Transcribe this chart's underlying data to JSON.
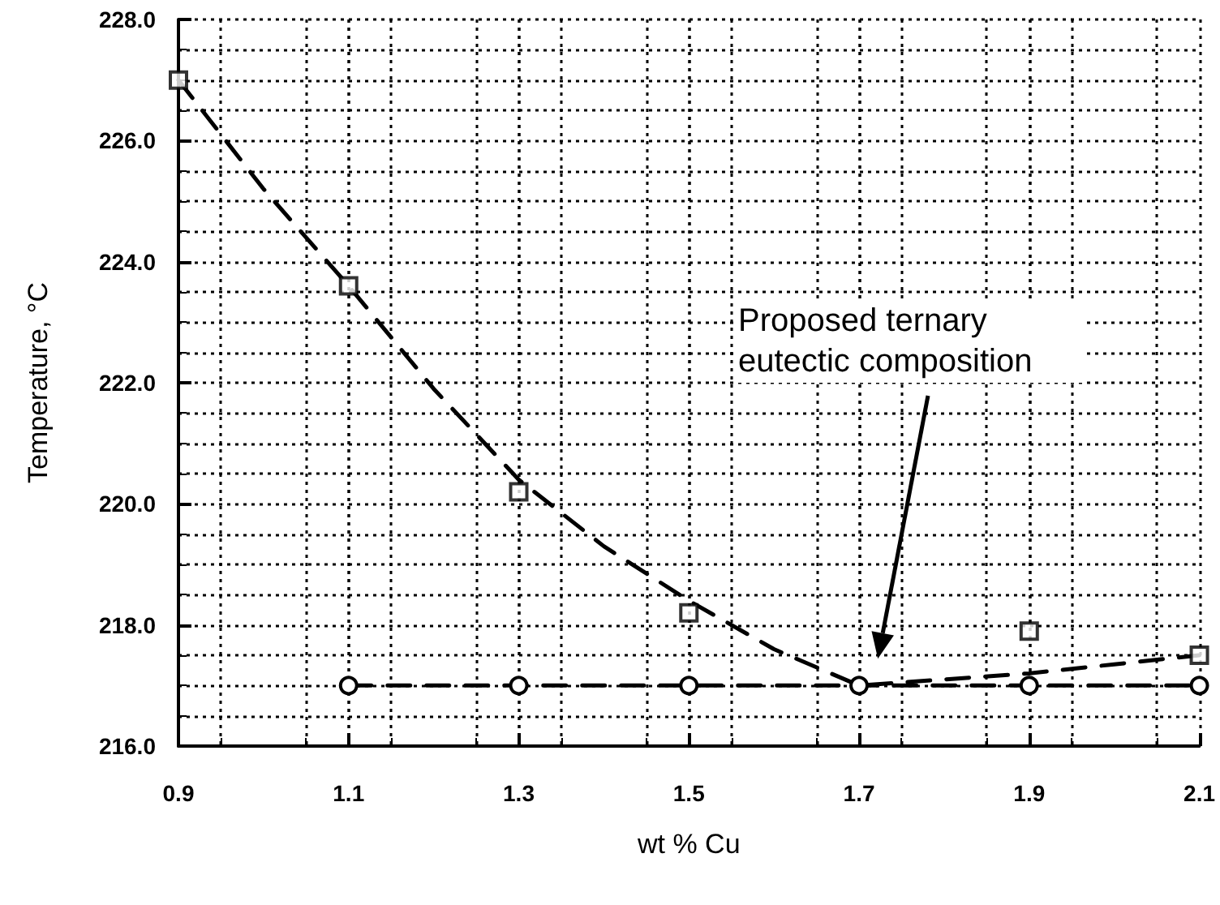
{
  "chart_data": {
    "type": "scatter",
    "xlabel": "wt % Cu",
    "ylabel": "Temperature, °C",
    "xlim": [
      0.9,
      2.1
    ],
    "ylim": [
      216,
      228
    ],
    "xticks": [
      0.9,
      1.1,
      1.3,
      1.5,
      1.7,
      1.9,
      2.1
    ],
    "yticks": [
      {
        "value": 216,
        "label": "216.0"
      },
      {
        "value": 218,
        "label": "218.0"
      },
      {
        "value": 220,
        "label": "220.0"
      },
      {
        "value": 222,
        "label": "222.0"
      },
      {
        "value": 224,
        "label": "224.0"
      },
      {
        "value": 226,
        "label": "226.0"
      },
      {
        "value": 228,
        "label": "228.0"
      }
    ],
    "grid": true,
    "series": [
      {
        "color": "#000000",
        "marker": "square",
        "x": [
          0.9,
          1.1,
          1.3,
          1.5,
          1.9,
          2.1
        ],
        "values": [
          227.0,
          223.6,
          220.2,
          218.2,
          217.9,
          217.5
        ]
      },
      {
        "type": "line",
        "color": "#000000",
        "marker": "none",
        "line_style": "dashed",
        "x": [
          0.9,
          1.0,
          1.1,
          1.2,
          1.3,
          1.4,
          1.5,
          1.6,
          1.7,
          1.8,
          1.9,
          2.0,
          2.1
        ],
        "values": [
          227.0,
          225.2,
          223.6,
          221.9,
          220.4,
          219.3,
          218.4,
          217.6,
          217.0,
          217.1,
          217.2,
          217.35,
          217.5
        ]
      },
      {
        "type": "line",
        "color": "#000000",
        "marker": "circle",
        "line_style": "dashed",
        "x": [
          1.1,
          1.3,
          1.5,
          1.7,
          1.9,
          2.1
        ],
        "values": [
          217.0,
          217.0,
          217.0,
          217.0,
          217.0,
          217.0
        ]
      }
    ],
    "annotations": [
      "Proposed ternary eutectic composition"
    ]
  }
}
